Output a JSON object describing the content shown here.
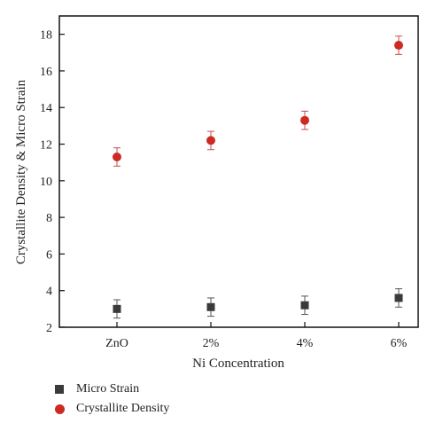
{
  "chart_data": {
    "type": "scatter",
    "title": "",
    "xlabel": "Ni Concentration",
    "ylabel": "Crystallite Density & Micro Strain",
    "categories": [
      "ZnO",
      "2%",
      "4%",
      "6%"
    ],
    "ylim": [
      2,
      19
    ],
    "yticks": [
      2,
      4,
      6,
      8,
      10,
      12,
      14,
      16,
      18
    ],
    "grid": false,
    "legend_position": "bottom-left",
    "series": [
      {
        "name": "Micro Strain",
        "marker": "square",
        "color": "#3a3a3a",
        "values": [
          3.0,
          3.1,
          3.2,
          3.6
        ],
        "errors": [
          0.5,
          0.5,
          0.5,
          0.5
        ]
      },
      {
        "name": "Crystallite Density",
        "marker": "circle",
        "color": "#cc2a23",
        "values": [
          11.3,
          12.2,
          13.3,
          17.4
        ],
        "errors": [
          0.5,
          0.5,
          0.5,
          0.5
        ]
      }
    ]
  }
}
